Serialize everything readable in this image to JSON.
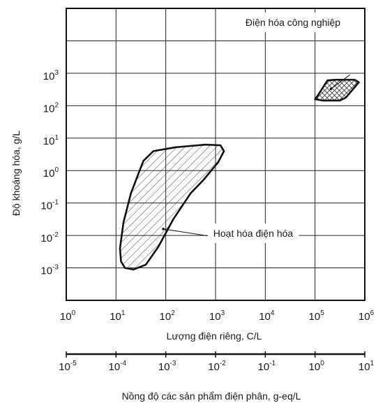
{
  "chart_data": {
    "type": "area",
    "x_axis": {
      "label": "Lượng điện riêng, C/L",
      "scale": "log",
      "range": [
        1,
        1000000
      ],
      "ticks": [
        {
          "base": "10",
          "exp": "0"
        },
        {
          "base": "10",
          "exp": "1"
        },
        {
          "base": "10",
          "exp": "2"
        },
        {
          "base": "10",
          "exp": "3"
        },
        {
          "base": "10",
          "exp": "4"
        },
        {
          "base": "10",
          "exp": "5"
        },
        {
          "base": "10",
          "exp": "6"
        }
      ]
    },
    "y_axis": {
      "label": "Độ khoáng hóa, g/L",
      "scale": "log",
      "range": [
        0.0001,
        100000
      ],
      "ticks": [
        {
          "base": "10",
          "exp": "-3"
        },
        {
          "base": "10",
          "exp": "-2"
        },
        {
          "base": "10",
          "exp": "-1"
        },
        {
          "base": "10",
          "exp": "0"
        },
        {
          "base": "10",
          "exp": "1"
        },
        {
          "base": "10",
          "exp": "2"
        },
        {
          "base": "10",
          "exp": "3"
        }
      ]
    },
    "secondary_x_axis": {
      "label": "Nồng độ các sản phẩm điện phân, g-eq/L",
      "scale": "log",
      "range": [
        1e-05,
        10
      ],
      "ticks": [
        {
          "base": "10",
          "exp": "-5"
        },
        {
          "base": "10",
          "exp": "-4"
        },
        {
          "base": "10",
          "exp": "-3"
        },
        {
          "base": "10",
          "exp": "-2"
        },
        {
          "base": "10",
          "exp": "-1"
        },
        {
          "base": "10",
          "exp": "0"
        },
        {
          "base": "10",
          "exp": "1"
        }
      ]
    },
    "grid": true,
    "regions": [
      {
        "label": "Điện hóa công nghiệp",
        "hatch": "cross",
        "log_points": [
          [
            5.05,
            2.3
          ],
          [
            5.25,
            2.78
          ],
          [
            5.42,
            2.8
          ],
          [
            5.8,
            2.8
          ],
          [
            5.88,
            2.72
          ],
          [
            5.62,
            2.25
          ],
          [
            5.5,
            2.16
          ],
          [
            5.15,
            2.16
          ],
          [
            5.0,
            2.2
          ]
        ],
        "leader_from_log": [
          5.7,
          2.95
        ],
        "leader_to_log": [
          5.32,
          2.52
        ]
      },
      {
        "label": "Hoạt hóa điện hóa",
        "hatch": "diagonal",
        "log_points": [
          [
            1.18,
            -3.0
          ],
          [
            1.1,
            -2.8
          ],
          [
            1.08,
            -2.4
          ],
          [
            1.15,
            -1.6
          ],
          [
            1.3,
            -0.7
          ],
          [
            1.45,
            -0.1
          ],
          [
            1.55,
            0.3
          ],
          [
            1.75,
            0.6
          ],
          [
            2.2,
            0.72
          ],
          [
            2.8,
            0.8
          ],
          [
            3.1,
            0.78
          ],
          [
            3.17,
            0.6
          ],
          [
            3.05,
            0.25
          ],
          [
            2.75,
            -0.3
          ],
          [
            2.5,
            -0.7
          ],
          [
            2.15,
            -1.5
          ],
          [
            1.85,
            -2.35
          ],
          [
            1.6,
            -2.9
          ],
          [
            1.35,
            -3.05
          ]
        ],
        "leader_from_log": [
          3.63,
          -2.2
        ],
        "leader_to_log": [
          1.95,
          -1.8
        ]
      }
    ]
  }
}
